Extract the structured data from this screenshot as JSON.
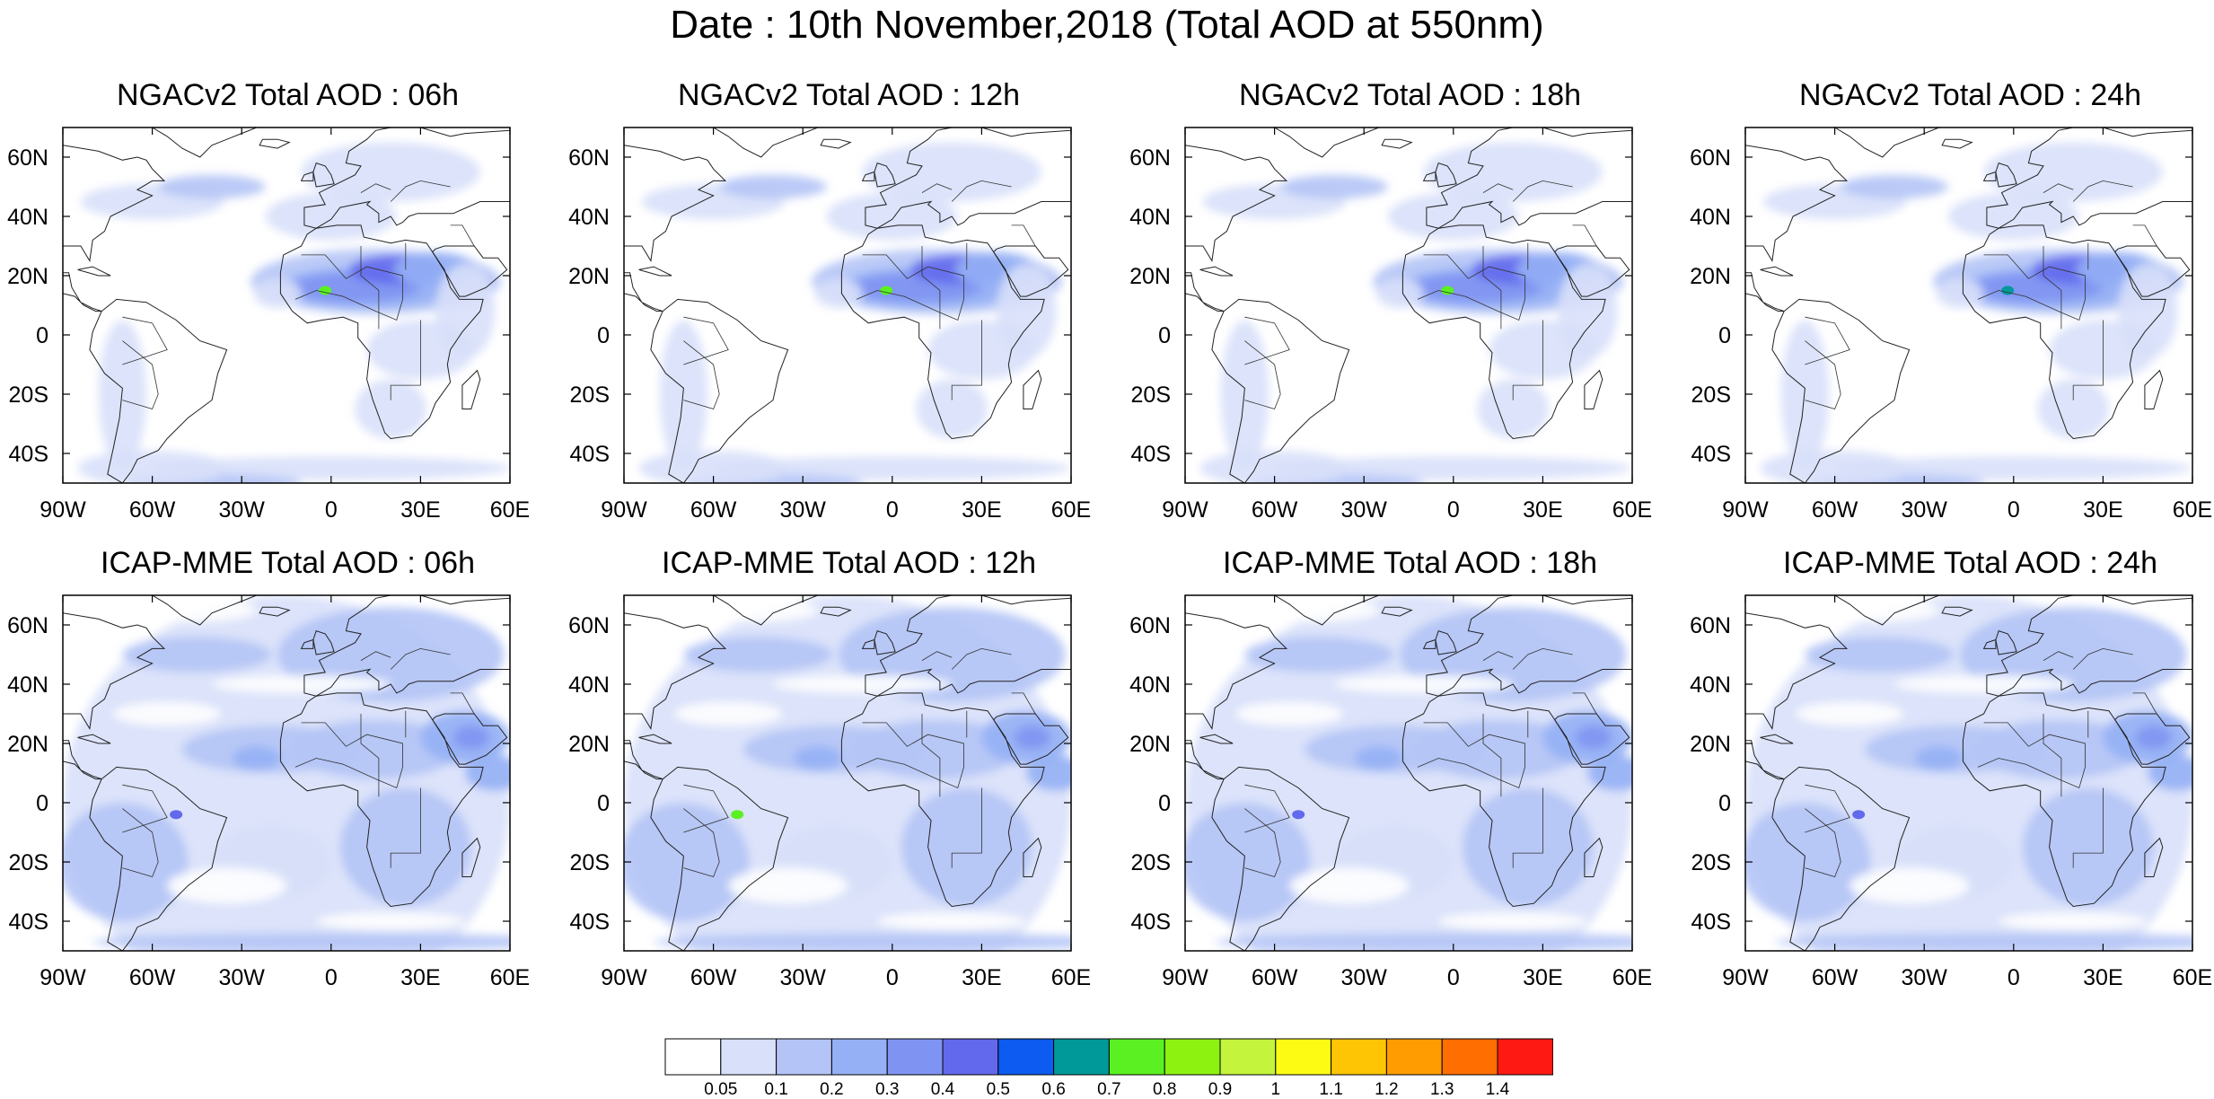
{
  "title": "Date : 10th November,2018 (Total AOD at 550nm)",
  "panels": [
    {
      "title": "NGACv2 Total AOD : 06h",
      "model": "NGACv2",
      "hour": "06h",
      "dust_peak": 0.8
    },
    {
      "title": "NGACv2 Total AOD : 12h",
      "model": "NGACv2",
      "hour": "12h",
      "dust_peak": 0.8
    },
    {
      "title": "NGACv2 Total AOD : 18h",
      "model": "NGACv2",
      "hour": "18h",
      "dust_peak": 0.8
    },
    {
      "title": "NGACv2 Total AOD : 24h",
      "model": "NGACv2",
      "hour": "24h",
      "dust_peak": 0.7
    },
    {
      "title": "ICAP-MME Total AOD : 06h",
      "model": "ICAP-MME",
      "hour": "06h",
      "dust_peak": 0.5
    },
    {
      "title": "ICAP-MME Total AOD : 12h",
      "model": "ICAP-MME",
      "hour": "12h",
      "dust_peak": 0.8
    },
    {
      "title": "ICAP-MME Total AOD : 18h",
      "model": "ICAP-MME",
      "hour": "18h",
      "dust_peak": 0.5
    },
    {
      "title": "ICAP-MME Total AOD : 24h",
      "model": "ICAP-MME",
      "hour": "24h",
      "dust_peak": 0.5
    }
  ],
  "axes": {
    "lat_labels": [
      "60N",
      "40N",
      "20N",
      "0",
      "20S",
      "40S"
    ],
    "lon_labels": [
      "90W",
      "60W",
      "30W",
      "0",
      "30E",
      "60E"
    ],
    "lat_range": [
      -50,
      70
    ],
    "lon_range": [
      -90,
      60
    ]
  },
  "colorbar": {
    "colors": [
      "#ffffff",
      "#d8e0fa",
      "#b4c4f6",
      "#95b0f5",
      "#7f94f2",
      "#6269ed",
      "#0d5bf0",
      "#009999",
      "#5bf022",
      "#8ef210",
      "#c4f53c",
      "#fdfb14",
      "#fdc503",
      "#fe9c01",
      "#fe6e00",
      "#fe1a13"
    ],
    "labels": [
      "0.05",
      "0.1",
      "0.2",
      "0.3",
      "0.4",
      "0.5",
      "0.6",
      "0.7",
      "0.8",
      "0.9",
      "1",
      "1.1",
      "1.2",
      "1.3",
      "1.4"
    ]
  }
}
